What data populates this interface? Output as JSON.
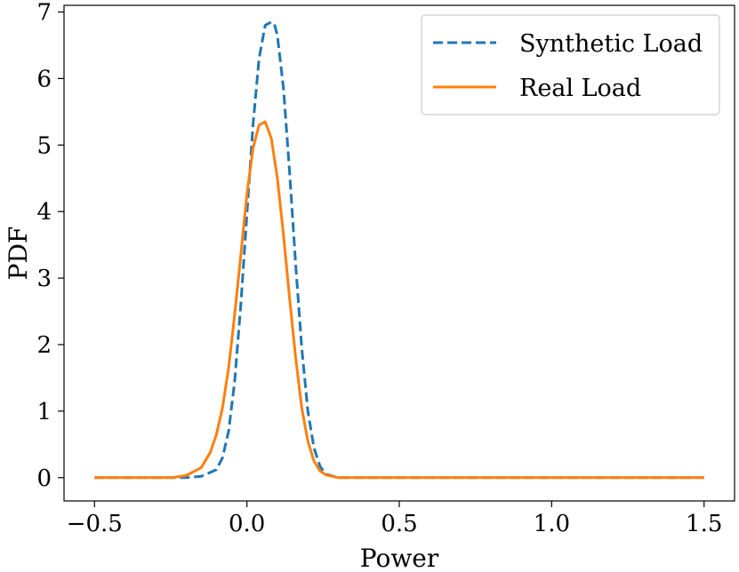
{
  "chart_data": {
    "type": "line",
    "title": "",
    "xlabel": "Power",
    "ylabel": "PDF",
    "xlim": [
      -0.6,
      1.6
    ],
    "ylim": [
      -0.35,
      7.1
    ],
    "x_ticks": [
      -0.5,
      0.0,
      0.5,
      1.0,
      1.5
    ],
    "x_tick_labels": [
      "−0.5",
      "0.0",
      "0.5",
      "1.0",
      "1.5"
    ],
    "y_ticks": [
      0,
      1,
      2,
      3,
      4,
      5,
      6,
      7
    ],
    "y_tick_labels": [
      "0",
      "1",
      "2",
      "3",
      "4",
      "5",
      "6",
      "7"
    ],
    "grid": false,
    "legend_position": "top-right",
    "series": [
      {
        "name": "Synthetic Load",
        "color": "#1f77b4",
        "dash": "dashed",
        "x": [
          -0.5,
          -0.2,
          -0.15,
          -0.1,
          -0.08,
          -0.06,
          -0.04,
          -0.02,
          0.0,
          0.02,
          0.04,
          0.06,
          0.08,
          0.09,
          0.1,
          0.12,
          0.14,
          0.16,
          0.18,
          0.2,
          0.22,
          0.24,
          0.26,
          0.3,
          0.35,
          1.5
        ],
        "y": [
          0.0,
          0.0,
          0.02,
          0.12,
          0.3,
          0.7,
          1.45,
          2.6,
          3.95,
          5.3,
          6.3,
          6.8,
          6.85,
          6.82,
          6.65,
          5.85,
          4.6,
          3.2,
          1.95,
          1.0,
          0.45,
          0.17,
          0.05,
          0.0,
          0.0,
          0.0
        ]
      },
      {
        "name": "Real Load",
        "color": "#ff7f0e",
        "dash": "solid",
        "x": [
          -0.5,
          -0.25,
          -0.2,
          -0.15,
          -0.12,
          -0.1,
          -0.08,
          -0.06,
          -0.04,
          -0.02,
          0.0,
          0.02,
          0.04,
          0.06,
          0.08,
          0.1,
          0.12,
          0.14,
          0.16,
          0.18,
          0.2,
          0.22,
          0.24,
          0.26,
          0.3,
          0.35,
          1.5
        ],
        "y": [
          0.0,
          0.0,
          0.03,
          0.15,
          0.38,
          0.65,
          1.05,
          1.65,
          2.45,
          3.35,
          4.25,
          4.95,
          5.3,
          5.35,
          5.1,
          4.5,
          3.65,
          2.7,
          1.8,
          1.05,
          0.55,
          0.25,
          0.1,
          0.04,
          0.0,
          0.0,
          0.0
        ]
      }
    ]
  }
}
